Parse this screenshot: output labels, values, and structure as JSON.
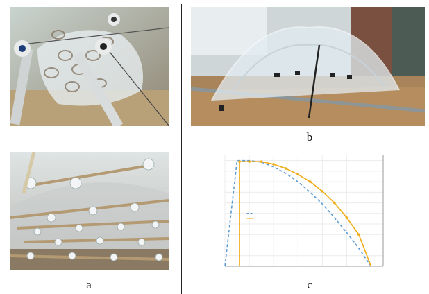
{
  "figure": {
    "panels": [
      {
        "id": "a",
        "caption": "a"
      },
      {
        "id": "b",
        "caption": "b"
      },
      {
        "id": "c",
        "caption": "c"
      }
    ]
  },
  "chart_data": {
    "type": "line",
    "series": [
      {
        "color": "#5b9bd5",
        "style": "dashed",
        "x": [
          0.0,
          0.5,
          1.0,
          1.5,
          2.0,
          2.5,
          3.0,
          3.5,
          4.0,
          4.5,
          5.0,
          5.5,
          6.0
        ],
        "y": [
          0.0,
          1.0,
          1.0,
          0.985,
          0.94,
          0.88,
          0.8,
          0.7,
          0.59,
          0.46,
          0.32,
          0.17,
          0.0
        ]
      },
      {
        "color": "#f0ac17",
        "style": "solid-markers",
        "x": [
          0.6,
          0.6,
          1.0,
          1.5,
          2.0,
          2.5,
          3.0,
          3.5,
          4.0,
          4.5,
          5.0,
          5.5,
          6.0
        ],
        "y": [
          0.0,
          0.99,
          0.99,
          0.99,
          0.965,
          0.925,
          0.87,
          0.8,
          0.71,
          0.6,
          0.46,
          0.3,
          0.0
        ]
      }
    ],
    "xlim": [
      0,
      6.5
    ],
    "ylim": [
      0,
      1.05
    ],
    "grid": true,
    "legend_placement": "left-center"
  }
}
